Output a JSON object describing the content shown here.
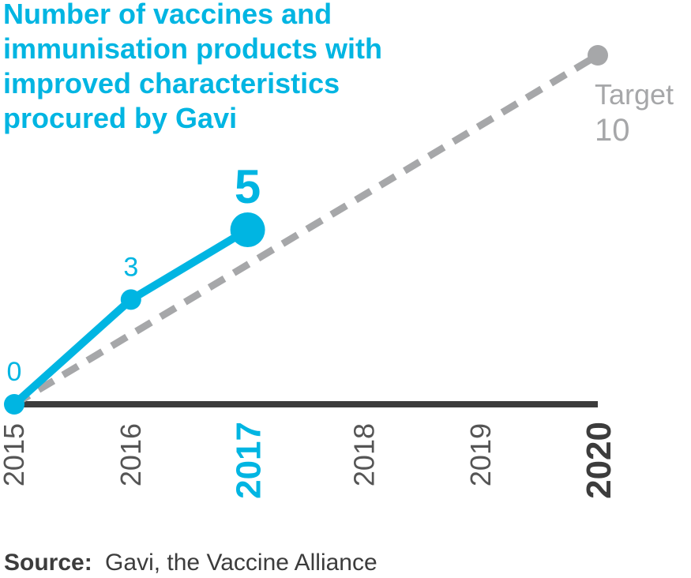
{
  "chart_data": {
    "type": "line",
    "title": [
      "Number of vaccines and",
      "immunisation products with",
      "improved characteristics",
      "procured by Gavi"
    ],
    "xticks": [
      2015,
      2016,
      2017,
      2018,
      2019,
      2020
    ],
    "xlim": [
      2015,
      2020
    ],
    "ylim": [
      0,
      10
    ],
    "series": [
      {
        "color": "#00b5e2",
        "x": [
          2015,
          2016,
          2017
        ],
        "values": [
          0,
          3,
          5
        ]
      },
      {
        "name": "Target",
        "color": "#a6a7a9",
        "dashed": true,
        "x": [
          2015,
          2020
        ],
        "values": [
          0,
          10
        ]
      }
    ],
    "source_label": "Source:",
    "source": "Gavi, the Vaccine Alliance"
  }
}
